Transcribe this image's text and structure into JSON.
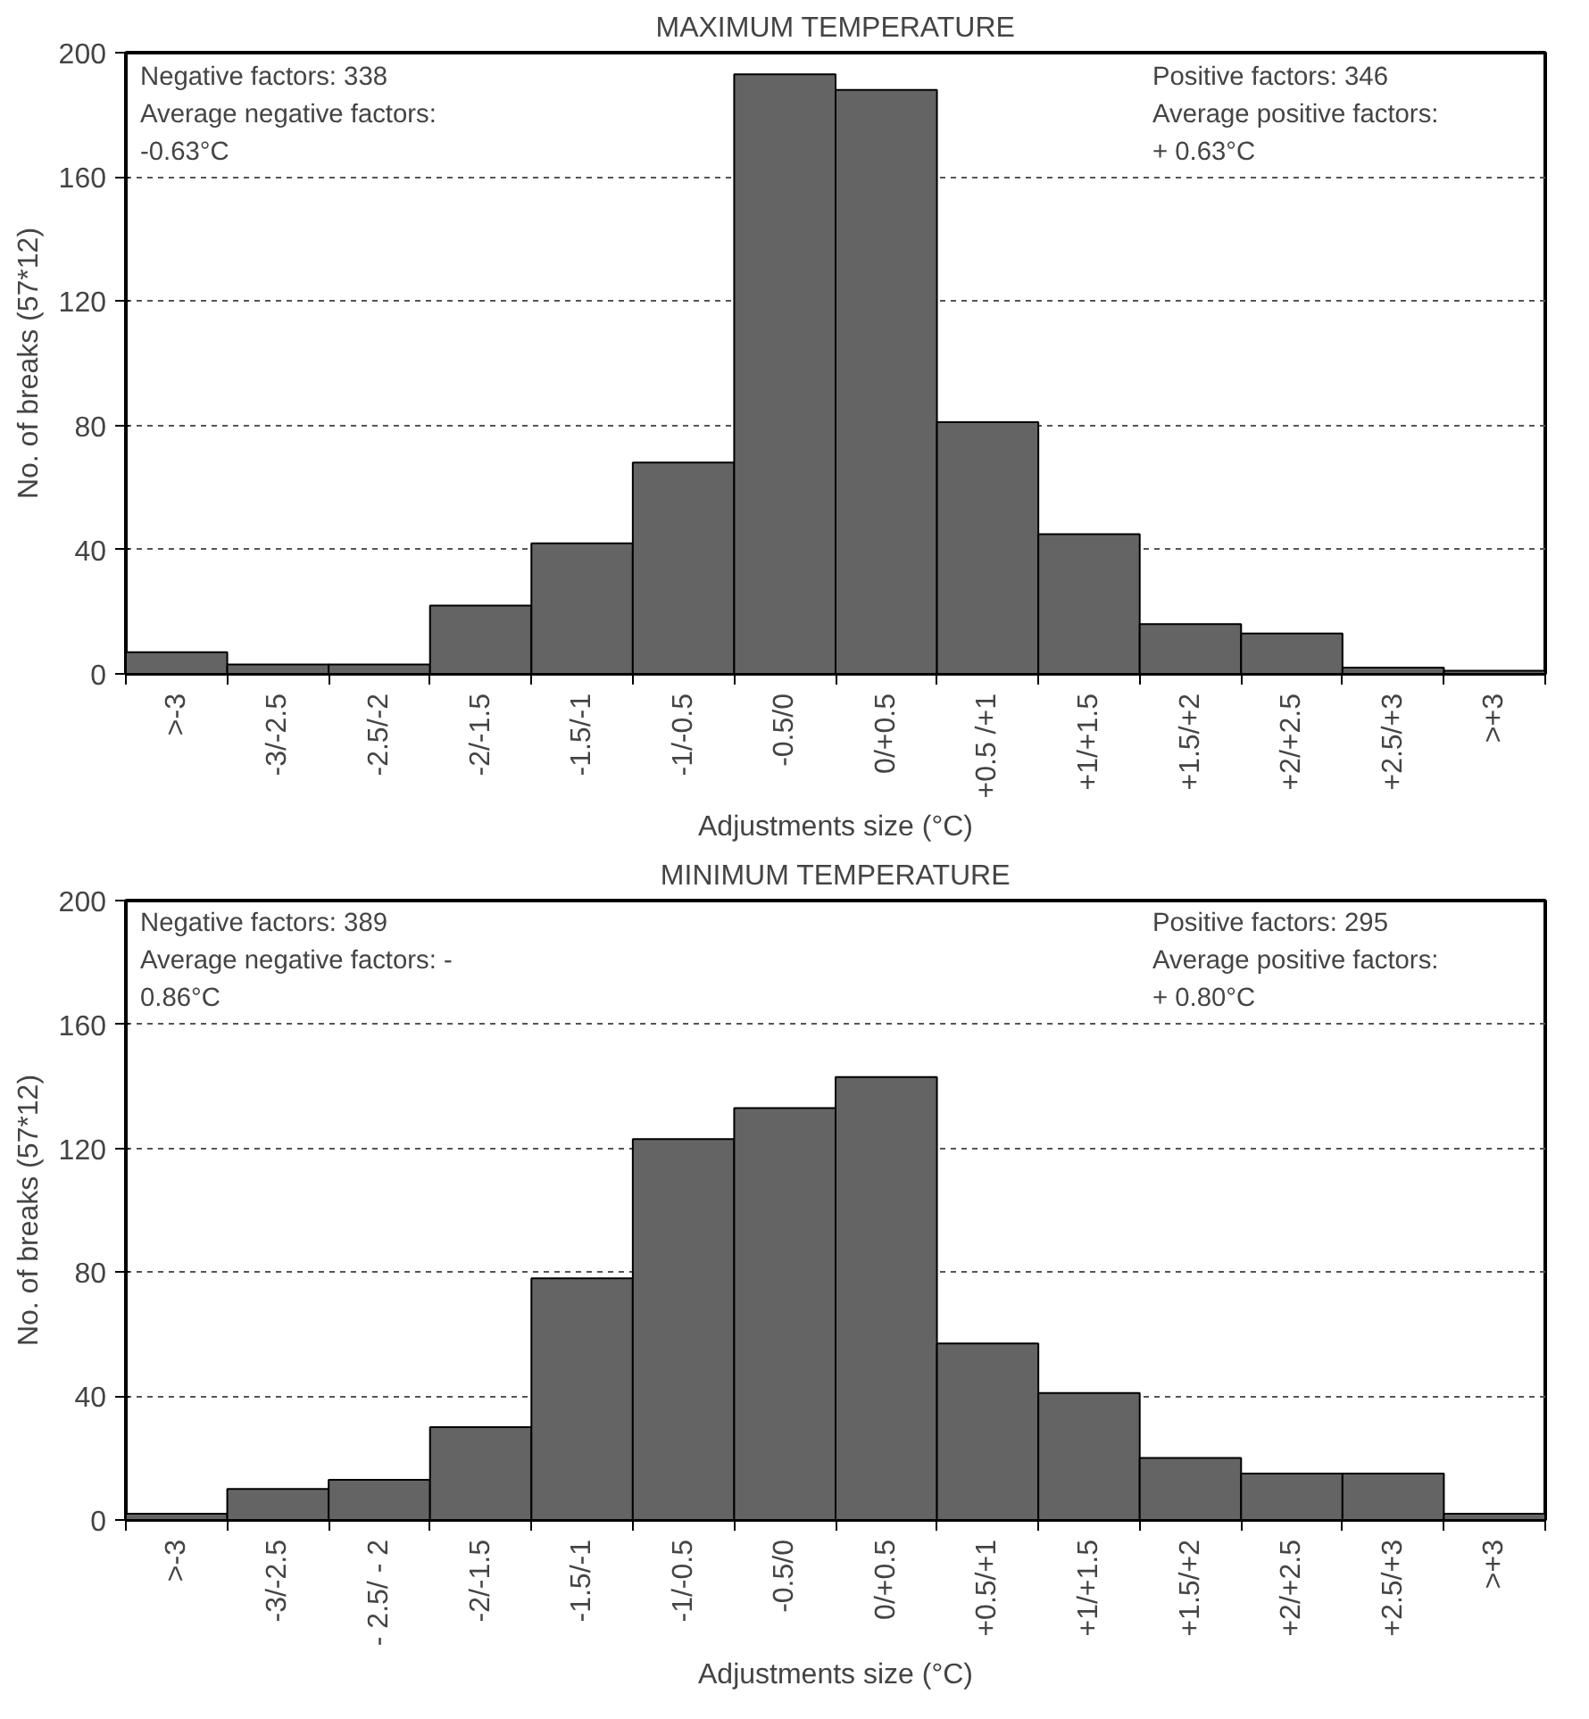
{
  "chart_data": [
    {
      "type": "bar",
      "title": "MAXIMUM TEMPERATURE",
      "xlabel": "Adjustments size (°C)",
      "ylabel": "No. of breaks (57*12)",
      "categories": [
        ">-3",
        "-3/-2.5",
        "-2.5/-2",
        "-2/-1.5",
        "-1.5/-1",
        "-1/-0.5",
        "-0.5/0",
        "0/+0.5",
        "+0.5 /+1",
        "+1/+1.5",
        "+1.5/+2",
        "+2/+2.5",
        "+2.5/+3",
        ">+3"
      ],
      "values": [
        7,
        3,
        3,
        22,
        42,
        68,
        193,
        188,
        81,
        45,
        16,
        13,
        2,
        1
      ],
      "color": "#646464",
      "ylim": [
        0,
        200
      ],
      "yticks": [
        0,
        40,
        80,
        120,
        160,
        200
      ],
      "grid": "y",
      "annotations": [
        "Negative factors: 338\nAverage negative factors:\n-0.63°C",
        "Positive factors: 346\nAverage positive factors:\n+ 0.63°C"
      ]
    },
    {
      "type": "bar",
      "title": "MINIMUM TEMPERATURE",
      "xlabel": "Adjustments size (°C)",
      "ylabel": "No. of breaks (57*12)",
      "categories": [
        ">-3",
        "-3/-2.5",
        "- 2.5/ - 2",
        "-2/-1.5",
        "-1.5/-1",
        "-1/-0.5",
        "-0.5/0",
        "0/+0.5",
        "+0.5/+1",
        "+1/+1.5",
        "+1.5/+2",
        "+2/+2.5",
        "+2.5/+3",
        ">+3"
      ],
      "values": [
        2,
        10,
        13,
        30,
        78,
        123,
        133,
        143,
        57,
        41,
        20,
        15,
        15,
        2
      ],
      "color": "#646464",
      "ylim": [
        0,
        200
      ],
      "yticks": [
        0,
        40,
        80,
        120,
        160,
        200
      ],
      "grid": "y",
      "annotations": [
        "Negative factors: 389\nAverage negative factors: -\n0.86°C",
        "Positive factors: 295\nAverage positive factors:\n+ 0.80°C"
      ]
    }
  ]
}
